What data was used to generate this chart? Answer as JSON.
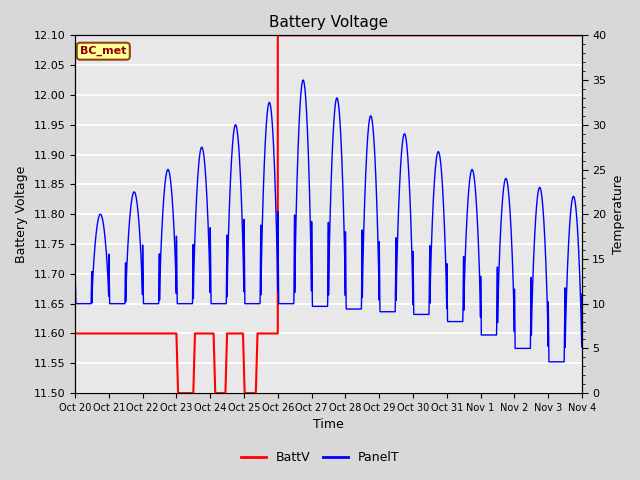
{
  "title": "Battery Voltage",
  "xlabel": "Time",
  "ylabel_left": "Battery Voltage",
  "ylabel_right": "Temperature",
  "ylim_left": [
    11.5,
    12.1
  ],
  "ylim_right": [
    0,
    40
  ],
  "fig_facecolor": "#d8d8d8",
  "plot_bg_color": "#e8e8e8",
  "label_box_text": "BC_met",
  "label_box_facecolor": "#ffff99",
  "label_box_edgecolor": "#8b4513",
  "label_box_textcolor": "#8b0000",
  "grid_color": "white",
  "xtick_labels": [
    "Oct 20",
    "Oct 21",
    "Oct 22",
    "Oct 23",
    "Oct 24",
    "Oct 25",
    "Oct 26",
    "Oct 27",
    "Oct 28",
    "Oct 29",
    "Oct 30",
    "Oct 31",
    "Nov 1",
    "Nov 2",
    "Nov 3",
    "Nov 4"
  ],
  "batt_color": "red",
  "panel_color": "blue",
  "legend_batt": "BattV",
  "legend_panel": "PanelT",
  "batt_segments": [
    {
      "x": [
        0,
        3.0
      ],
      "y": [
        11.6,
        11.6
      ]
    },
    {
      "x": [
        3.0,
        3.05
      ],
      "y": [
        11.6,
        11.5
      ]
    },
    {
      "x": [
        3.05,
        3.5
      ],
      "y": [
        11.5,
        11.5
      ]
    },
    {
      "x": [
        3.5,
        3.55
      ],
      "y": [
        11.5,
        11.6
      ]
    },
    {
      "x": [
        3.55,
        4.1
      ],
      "y": [
        11.6,
        11.6
      ]
    },
    {
      "x": [
        4.1,
        4.15
      ],
      "y": [
        11.6,
        11.5
      ]
    },
    {
      "x": [
        4.15,
        4.45
      ],
      "y": [
        11.5,
        11.5
      ]
    },
    {
      "x": [
        4.45,
        4.5
      ],
      "y": [
        11.5,
        11.6
      ]
    },
    {
      "x": [
        4.5,
        4.97
      ],
      "y": [
        11.6,
        11.6
      ]
    },
    {
      "x": [
        4.97,
        5.02
      ],
      "y": [
        11.6,
        11.5
      ]
    },
    {
      "x": [
        5.02,
        5.35
      ],
      "y": [
        11.5,
        11.5
      ]
    },
    {
      "x": [
        5.35,
        5.4
      ],
      "y": [
        11.5,
        11.6
      ]
    },
    {
      "x": [
        5.4,
        6.0
      ],
      "y": [
        11.6,
        11.6
      ]
    },
    {
      "x": [
        6.0,
        6.0
      ],
      "y": [
        11.6,
        12.1
      ]
    },
    {
      "x": [
        6.0,
        15.0
      ],
      "y": [
        12.1,
        12.1
      ]
    }
  ]
}
